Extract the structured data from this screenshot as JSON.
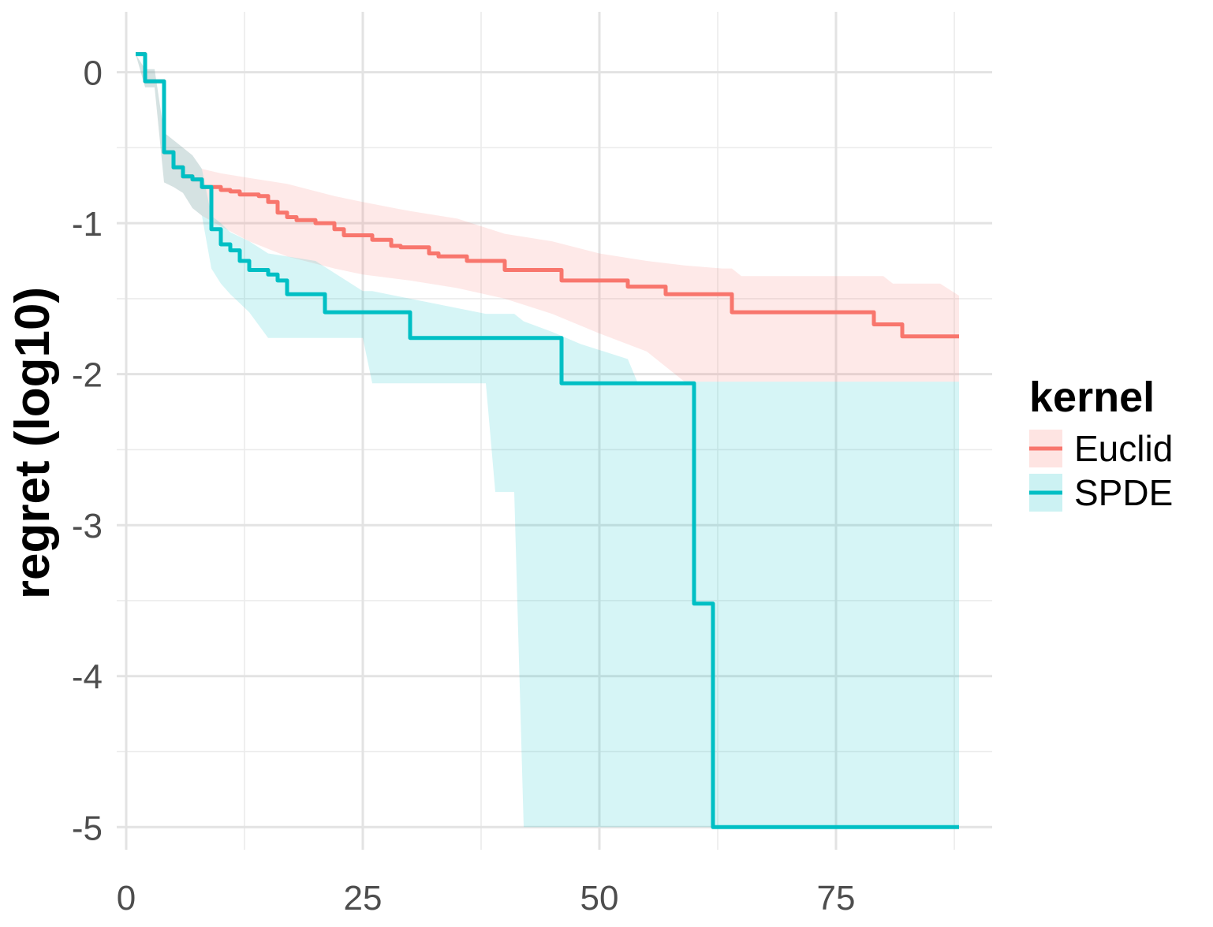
{
  "chart_data": {
    "type": "line",
    "xlabel": "",
    "ylabel": "regret (log10)",
    "xlim": [
      -1,
      91.5
    ],
    "ylim": [
      -5.15,
      0.4
    ],
    "x_ticks": [
      0,
      25,
      50,
      75
    ],
    "x_tick_labels": [
      "0",
      "25",
      "50",
      "75"
    ],
    "y_ticks": [
      0,
      -1,
      -2,
      -3,
      -4,
      -5
    ],
    "y_tick_labels": [
      "0",
      "-1",
      "-2",
      "-3",
      "-4",
      "-5"
    ],
    "grid": true,
    "legend": {
      "title": "kernel",
      "position": "right"
    },
    "series": [
      {
        "name": "Euclid",
        "color": "#F8766D",
        "fill": "#F8766D",
        "line": [
          [
            1,
            0.12
          ],
          [
            2,
            -0.06
          ],
          [
            3,
            -0.06
          ],
          [
            4,
            -0.53
          ],
          [
            5,
            -0.63
          ],
          [
            6,
            -0.69
          ],
          [
            7,
            -0.71
          ],
          [
            8,
            -0.76
          ],
          [
            10,
            -0.78
          ],
          [
            11,
            -0.79
          ],
          [
            12,
            -0.81
          ],
          [
            14,
            -0.82
          ],
          [
            15,
            -0.86
          ],
          [
            16,
            -0.93
          ],
          [
            17,
            -0.96
          ],
          [
            18,
            -0.98
          ],
          [
            20,
            -1.0
          ],
          [
            21,
            -1.0
          ],
          [
            22,
            -1.04
          ],
          [
            23,
            -1.08
          ],
          [
            25,
            -1.08
          ],
          [
            26,
            -1.11
          ],
          [
            27,
            -1.11
          ],
          [
            28,
            -1.15
          ],
          [
            29,
            -1.16
          ],
          [
            31,
            -1.16
          ],
          [
            32,
            -1.2
          ],
          [
            33,
            -1.22
          ],
          [
            35,
            -1.22
          ],
          [
            36,
            -1.25
          ],
          [
            38,
            -1.25
          ],
          [
            40,
            -1.31
          ],
          [
            45,
            -1.31
          ],
          [
            46,
            -1.38
          ],
          [
            52,
            -1.38
          ],
          [
            53,
            -1.42
          ],
          [
            56,
            -1.42
          ],
          [
            57,
            -1.47
          ],
          [
            62,
            -1.47
          ],
          [
            64,
            -1.59
          ],
          [
            78,
            -1.59
          ],
          [
            79,
            -1.67
          ],
          [
            81,
            -1.67
          ],
          [
            82,
            -1.75
          ],
          [
            88,
            -1.75
          ]
        ],
        "band": [
          [
            1,
            0.12,
            0.12
          ],
          [
            2,
            0.02,
            -0.1
          ],
          [
            3,
            0.02,
            -0.1
          ],
          [
            4,
            -0.4,
            -0.73
          ],
          [
            5,
            -0.45,
            -0.76
          ],
          [
            6,
            -0.5,
            -0.8
          ],
          [
            7,
            -0.55,
            -0.9
          ],
          [
            8,
            -0.64,
            -0.95
          ],
          [
            10,
            -0.67,
            -1.02
          ],
          [
            13,
            -0.7,
            -1.12
          ],
          [
            17,
            -0.74,
            -1.22
          ],
          [
            22,
            -0.82,
            -1.3
          ],
          [
            25,
            -0.86,
            -1.34
          ],
          [
            30,
            -0.92,
            -1.38
          ],
          [
            35,
            -0.97,
            -1.43
          ],
          [
            40,
            -1.07,
            -1.5
          ],
          [
            45,
            -1.12,
            -1.6
          ],
          [
            50,
            -1.2,
            -1.73
          ],
          [
            55,
            -1.25,
            -1.85
          ],
          [
            59,
            -1.28,
            -2.05
          ],
          [
            63,
            -1.3,
            -2.05
          ],
          [
            64,
            -1.3,
            -2.05
          ],
          [
            65,
            -1.35,
            -2.05
          ],
          [
            75,
            -1.35,
            -2.05
          ],
          [
            80,
            -1.35,
            -2.05
          ],
          [
            81,
            -1.4,
            -2.05
          ],
          [
            86,
            -1.4,
            -2.05
          ],
          [
            88,
            -1.48,
            -2.05
          ]
        ]
      },
      {
        "name": "SPDE",
        "color": "#00BFC4",
        "fill": "#00BFC4",
        "line": [
          [
            1,
            0.12
          ],
          [
            2,
            -0.06
          ],
          [
            3,
            -0.06
          ],
          [
            4,
            -0.53
          ],
          [
            5,
            -0.63
          ],
          [
            6,
            -0.69
          ],
          [
            7,
            -0.71
          ],
          [
            8,
            -0.76
          ],
          [
            9,
            -1.04
          ],
          [
            10,
            -1.14
          ],
          [
            11,
            -1.18
          ],
          [
            12,
            -1.25
          ],
          [
            13,
            -1.31
          ],
          [
            14,
            -1.31
          ],
          [
            15,
            -1.34
          ],
          [
            16,
            -1.38
          ],
          [
            17,
            -1.47
          ],
          [
            19,
            -1.47
          ],
          [
            21,
            -1.59
          ],
          [
            29,
            -1.59
          ],
          [
            30,
            -1.76
          ],
          [
            44,
            -1.76
          ],
          [
            46,
            -2.06
          ],
          [
            59,
            -2.06
          ],
          [
            60,
            -3.52
          ],
          [
            61,
            -3.52
          ],
          [
            62,
            -5.0
          ],
          [
            88,
            -5.0
          ]
        ],
        "band": [
          [
            1,
            0.12,
            0.12
          ],
          [
            2,
            0.02,
            -0.1
          ],
          [
            3,
            0.02,
            -0.1
          ],
          [
            4,
            -0.4,
            -0.73
          ],
          [
            5,
            -0.45,
            -0.76
          ],
          [
            6,
            -0.5,
            -0.8
          ],
          [
            7,
            -0.55,
            -0.9
          ],
          [
            8,
            -0.64,
            -0.95
          ],
          [
            9,
            -0.95,
            -1.3
          ],
          [
            10,
            -1.0,
            -1.4
          ],
          [
            11,
            -1.06,
            -1.47
          ],
          [
            13,
            -1.12,
            -1.59
          ],
          [
            15,
            -1.2,
            -1.76
          ],
          [
            20,
            -1.25,
            -1.76
          ],
          [
            25,
            -1.45,
            -1.76
          ],
          [
            26,
            -1.45,
            -2.06
          ],
          [
            30,
            -1.5,
            -2.06
          ],
          [
            38,
            -1.6,
            -2.06
          ],
          [
            39,
            -1.6,
            -2.78
          ],
          [
            41,
            -1.6,
            -2.78
          ],
          [
            42,
            -1.65,
            -5.0
          ],
          [
            45,
            -1.72,
            -5.0
          ],
          [
            48,
            -1.8,
            -5.0
          ],
          [
            53,
            -1.9,
            -5.0
          ],
          [
            54,
            -2.05,
            -5.0
          ],
          [
            80,
            -2.05,
            -5.0
          ],
          [
            81,
            -2.05,
            -5.0
          ],
          [
            88,
            -2.05,
            -5.0
          ]
        ]
      }
    ]
  }
}
